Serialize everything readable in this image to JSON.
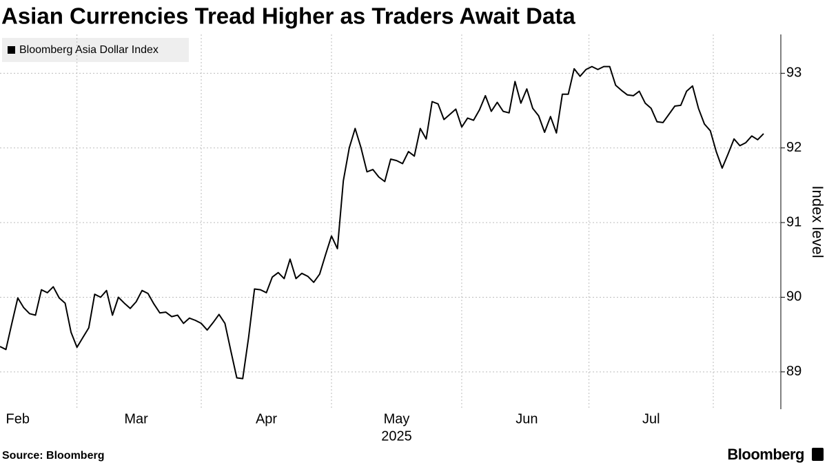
{
  "chart_data": {
    "type": "line",
    "title": "Asian Currencies Tread Higher as Traders Await Data",
    "y_label": "Index level",
    "year_label": "2025",
    "source": "Source: Bloomberg",
    "brand": "Bloomberg",
    "grid": true,
    "legend": "top-left",
    "categories": [
      null,
      null,
      null,
      "Feb",
      null,
      null,
      null,
      null,
      null,
      null,
      null,
      null,
      null,
      null,
      null,
      null,
      null,
      null,
      null,
      null,
      null,
      null,
      null,
      "Mar",
      null,
      null,
      null,
      null,
      null,
      null,
      null,
      null,
      null,
      null,
      null,
      null,
      null,
      null,
      null,
      null,
      null,
      null,
      null,
      null,
      null,
      "Apr",
      null,
      null,
      null,
      null,
      null,
      null,
      null,
      null,
      null,
      null,
      null,
      null,
      null,
      null,
      null,
      null,
      null,
      null,
      null,
      null,
      null,
      "May",
      null,
      null,
      null,
      null,
      null,
      null,
      null,
      null,
      null,
      null,
      null,
      null,
      null,
      null,
      null,
      null,
      null,
      null,
      null,
      null,
      null,
      "Jun",
      null,
      null,
      null,
      null,
      null,
      null,
      null,
      null,
      null,
      null,
      null,
      null,
      null,
      null,
      null,
      null,
      null,
      null,
      null,
      null,
      "Jul",
      null,
      null,
      null,
      null,
      null,
      null,
      null,
      null,
      null,
      null,
      null,
      null,
      null,
      null,
      null,
      null,
      null,
      null,
      null
    ],
    "series": [
      {
        "name": "Bloomberg Asia Dollar Index",
        "color": "#000000",
        "values": [
          89.34,
          89.3,
          89.65,
          89.99,
          89.86,
          89.78,
          89.76,
          90.1,
          90.06,
          90.14,
          89.99,
          89.92,
          89.53,
          89.33,
          89.46,
          89.59,
          90.04,
          90.0,
          90.09,
          89.76,
          90.0,
          89.92,
          89.85,
          89.94,
          90.09,
          90.05,
          89.91,
          89.79,
          89.8,
          89.74,
          89.76,
          89.65,
          89.72,
          89.69,
          89.65,
          89.56,
          89.66,
          89.77,
          89.65,
          89.28,
          88.92,
          88.91,
          89.46,
          90.11,
          90.1,
          90.06,
          90.27,
          90.33,
          90.25,
          90.51,
          90.25,
          90.32,
          90.28,
          90.2,
          90.31,
          90.57,
          90.82,
          90.65,
          91.56,
          92.0,
          92.26,
          92.0,
          91.68,
          91.71,
          91.61,
          91.55,
          91.85,
          91.83,
          91.79,
          91.95,
          91.89,
          92.26,
          92.12,
          92.62,
          92.59,
          92.38,
          92.45,
          92.52,
          92.28,
          92.4,
          92.37,
          92.51,
          92.7,
          92.49,
          92.61,
          92.49,
          92.47,
          92.89,
          92.6,
          92.79,
          92.53,
          92.43,
          92.21,
          92.42,
          92.2,
          92.72,
          92.72,
          93.06,
          92.96,
          93.05,
          93.09,
          93.05,
          93.09,
          93.09,
          92.84,
          92.77,
          92.71,
          92.7,
          92.76,
          92.6,
          92.53,
          92.35,
          92.34,
          92.45,
          92.56,
          92.57,
          92.76,
          92.83,
          92.53,
          92.32,
          92.23,
          91.95,
          91.73,
          91.92,
          92.12,
          92.03,
          92.07,
          92.16,
          92.11,
          92.19
        ]
      }
    ],
    "ylim": [
      88.5,
      93.52
    ],
    "yticks": [
      89,
      90,
      91,
      92,
      93
    ]
  }
}
